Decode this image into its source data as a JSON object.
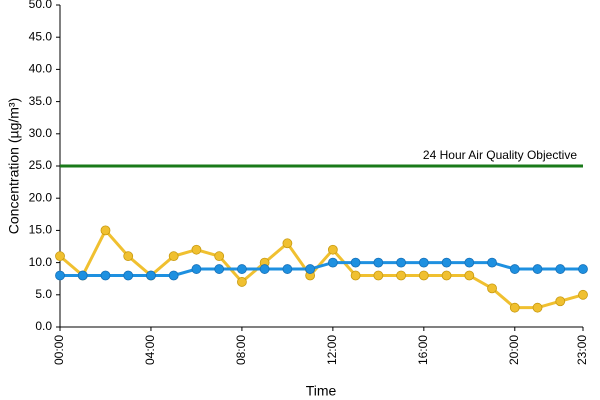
{
  "chart_data": {
    "type": "line",
    "x_label": "Time",
    "y_label": "Concentration (µg/m³)",
    "categories": [
      "00:00",
      null,
      null,
      null,
      "04:00",
      null,
      null,
      null,
      "08:00",
      null,
      null,
      null,
      "12:00",
      null,
      null,
      null,
      "16:00",
      null,
      null,
      null,
      "20:00",
      null,
      null,
      "23:00"
    ],
    "series": [
      {
        "color": "#f0c030",
        "values": [
          11,
          8,
          15,
          11,
          8,
          11,
          12,
          11,
          7,
          10,
          13,
          8,
          12,
          8,
          8,
          8,
          8,
          8,
          8,
          6,
          3,
          3,
          4,
          5
        ]
      },
      {
        "color": "#1e90e0",
        "values": [
          8,
          8,
          8,
          8,
          8,
          8,
          9,
          9,
          9,
          9,
          9,
          9,
          10,
          10,
          10,
          10,
          10,
          10,
          10,
          10,
          9,
          9,
          9,
          9
        ]
      }
    ],
    "reference_lines": [
      {
        "label": "24 Hour Air Quality Objective",
        "value": 25,
        "color": "#1a7a1a"
      }
    ],
    "ylim": [
      0,
      50
    ],
    "yticks": [
      {
        "value": 0,
        "label": "0.0"
      },
      {
        "value": 5,
        "label": "5.0"
      },
      {
        "value": 10,
        "label": "10.0"
      },
      {
        "value": 15,
        "label": "15.0"
      },
      {
        "value": 20,
        "label": "20.0"
      },
      {
        "value": 25,
        "label": "25.0"
      },
      {
        "value": 30,
        "label": "30.0"
      },
      {
        "value": 35,
        "label": "35.0"
      },
      {
        "value": 40,
        "label": "40.0"
      },
      {
        "value": 45,
        "label": "45.0"
      },
      {
        "value": 50,
        "label": "50.0"
      }
    ],
    "grid": false
  }
}
